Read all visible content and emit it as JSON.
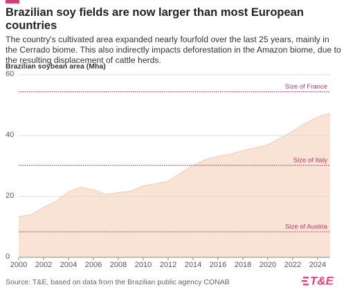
{
  "chart_data": {
    "type": "area",
    "title": "Brazilian soy fields are now larger than most European countries",
    "subtitle": "The country's cultivated area expanded nearly fourfold over the last 25 years, mainly in the Cerrado biome. This also indirectly impacts deforestation in the Amazon biome, due to the resulting displacement of cattle herds.",
    "y_label": "Brazilian soybean area (Mha)",
    "source": "Source: T&E, based on data from the Brazilian public agency CONAB",
    "logo": "T&E",
    "x": [
      2000,
      2001,
      2002,
      2003,
      2004,
      2005,
      2006,
      2007,
      2008,
      2009,
      2010,
      2011,
      2012,
      2013,
      2014,
      2015,
      2016,
      2017,
      2018,
      2019,
      2020,
      2021,
      2022,
      2023,
      2024,
      2025
    ],
    "values": [
      13.4,
      14.0,
      16.4,
      18.4,
      21.5,
      23.0,
      22.2,
      20.7,
      21.3,
      21.7,
      23.5,
      24.2,
      25.0,
      27.7,
      30.2,
      32.1,
      33.2,
      33.9,
      35.1,
      36.0,
      37.0,
      39.2,
      41.5,
      44.0,
      46.1,
      47.3
    ],
    "color": "#f9e3d5",
    "line_color": "#f1cbb3",
    "xlim": [
      2000,
      2025
    ],
    "xticks": [
      2000,
      2002,
      2004,
      2006,
      2008,
      2010,
      2012,
      2014,
      2016,
      2018,
      2020,
      2022,
      2024
    ],
    "ylim": [
      0,
      60
    ],
    "yticks": [
      0,
      20,
      40,
      60
    ],
    "grid": true,
    "reference_lines": [
      {
        "label": "Size of France",
        "value": 54.4
      },
      {
        "label": "Size of Italy",
        "value": 30.2
      },
      {
        "label": "Size of Austria",
        "value": 8.4
      }
    ],
    "reference_color": "#c2336b"
  }
}
